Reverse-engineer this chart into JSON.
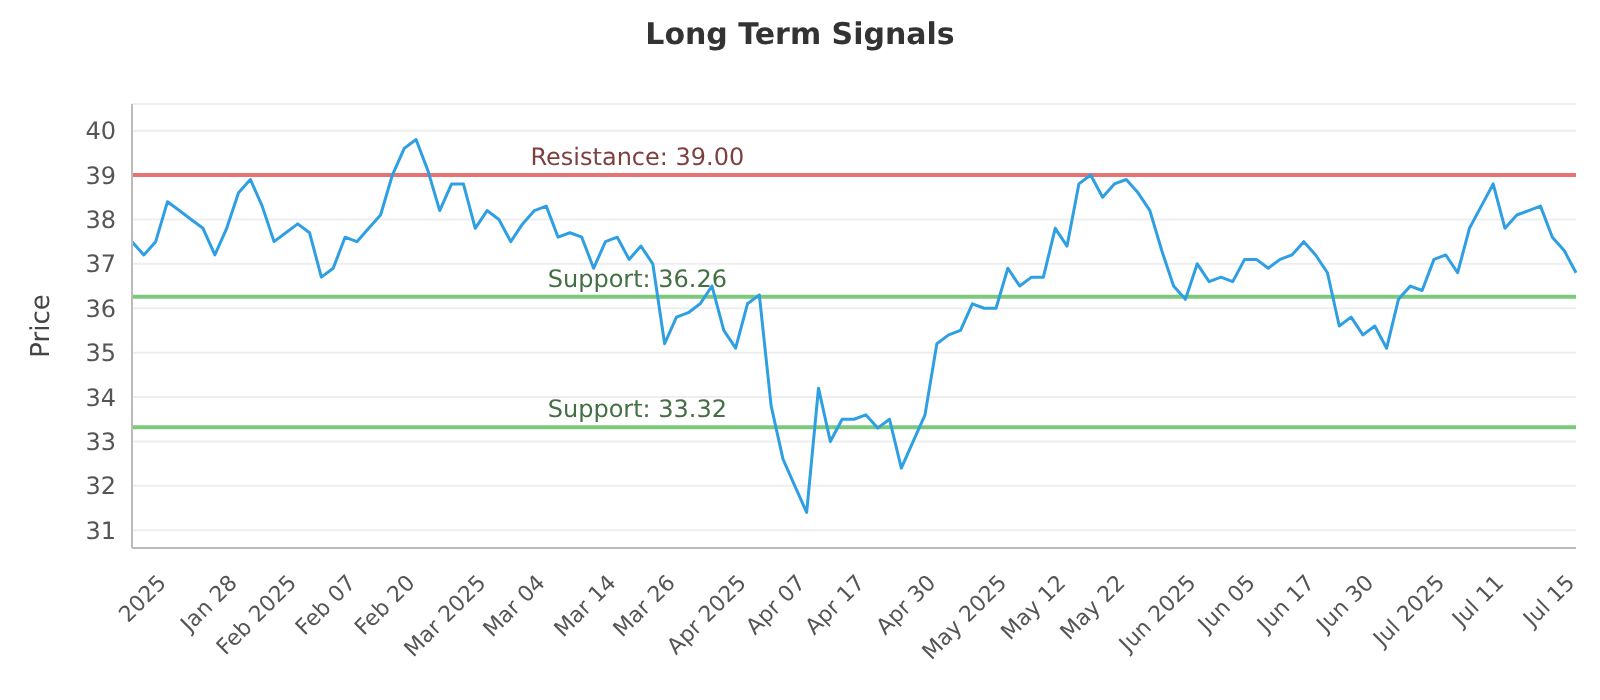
{
  "chart_data": {
    "type": "line",
    "title": "Long Term Signals",
    "ylabel": "Price",
    "categories": [
      null,
      null,
      null,
      "2025",
      null,
      null,
      null,
      null,
      null,
      "Jan 28",
      null,
      null,
      null,
      null,
      "Feb 2025",
      null,
      null,
      null,
      null,
      "Feb 07",
      null,
      null,
      null,
      null,
      "Feb 20",
      null,
      null,
      null,
      null,
      null,
      "Mar 2025",
      null,
      null,
      null,
      null,
      "Mar 04",
      null,
      null,
      null,
      null,
      null,
      "Mar 14",
      null,
      null,
      null,
      null,
      "Mar 26",
      null,
      null,
      null,
      null,
      null,
      "Apr 2025",
      null,
      null,
      null,
      null,
      "Apr 07",
      null,
      null,
      null,
      null,
      "Apr 17",
      null,
      null,
      null,
      null,
      null,
      "Apr 30",
      null,
      null,
      null,
      null,
      null,
      "May 2025",
      null,
      null,
      null,
      null,
      "May 12",
      null,
      null,
      null,
      null,
      "May 22",
      null,
      null,
      null,
      null,
      null,
      "Jun 2025",
      null,
      null,
      null,
      null,
      "Jun 05",
      null,
      null,
      null,
      null,
      "Jun 17",
      null,
      null,
      null,
      null,
      "Jun 30",
      null,
      null,
      null,
      null,
      null,
      "Jul 2025",
      null,
      null,
      null,
      null,
      "Jul 11",
      null,
      null,
      null,
      null,
      null,
      "Jul 15"
    ],
    "series": [
      {
        "color": "#2f9fe3",
        "values": [
          37.5,
          37.2,
          37.5,
          38.4,
          38.2,
          38.0,
          37.8,
          37.2,
          37.8,
          38.6,
          38.9,
          38.3,
          37.5,
          37.7,
          37.9,
          37.7,
          36.7,
          36.9,
          37.6,
          37.5,
          37.8,
          38.1,
          39.0,
          39.6,
          39.8,
          39.1,
          38.2,
          38.8,
          38.8,
          37.8,
          38.2,
          38.0,
          37.5,
          37.9,
          38.2,
          38.3,
          37.6,
          37.7,
          37.6,
          36.9,
          37.5,
          37.6,
          37.1,
          37.4,
          37.0,
          35.2,
          35.8,
          35.9,
          36.1,
          36.5,
          35.5,
          35.1,
          36.1,
          36.3,
          33.8,
          32.6,
          32.0,
          31.4,
          34.2,
          33.0,
          33.5,
          33.5,
          33.6,
          33.3,
          33.5,
          32.4,
          33.0,
          33.6,
          35.2,
          35.4,
          35.5,
          36.1,
          36.0,
          36.0,
          36.9,
          36.5,
          36.7,
          36.7,
          37.8,
          37.4,
          38.8,
          39.0,
          38.5,
          38.8,
          38.9,
          38.6,
          38.2,
          37.3,
          36.5,
          36.2,
          37.0,
          36.6,
          36.7,
          36.6,
          37.1,
          37.1,
          36.9,
          37.1,
          37.2,
          37.5,
          37.2,
          36.8,
          35.6,
          35.8,
          35.4,
          35.6,
          35.1,
          36.2,
          36.5,
          36.4,
          37.1,
          37.2,
          36.8,
          37.8,
          38.3,
          38.8,
          37.8,
          38.1,
          38.2,
          38.3,
          37.6,
          37.3,
          36.8
        ]
      }
    ],
    "ylim": [
      30.6,
      40.6
    ],
    "yticks": [
      31,
      32,
      33,
      34,
      35,
      36,
      37,
      38,
      39,
      40
    ],
    "grid": "y",
    "legend": false,
    "marker": "none",
    "line_style": "solid",
    "ref_lines": [
      {
        "axis": "y",
        "value": 39.0,
        "label": "Resistance: 39.00",
        "color": "#e57373"
      },
      {
        "axis": "y",
        "value": 36.26,
        "label": "Support: 36.26",
        "color": "#7cc97c"
      },
      {
        "axis": "y",
        "value": 33.32,
        "label": "Support: 33.32",
        "color": "#7cc97c"
      }
    ]
  }
}
